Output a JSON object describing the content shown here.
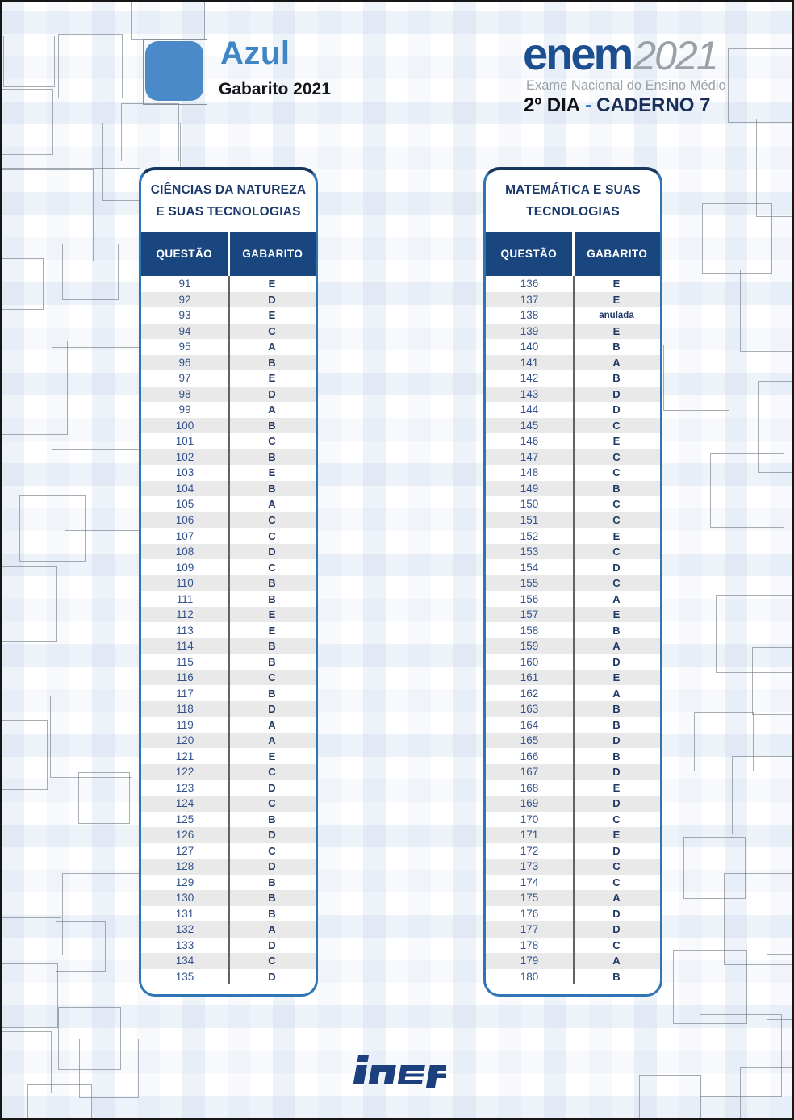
{
  "header": {
    "color_name": "Azul",
    "subtitle": "Gabarito 2021",
    "brand": "enem",
    "brand_year": "2021",
    "brand_tagline": "Exame Nacional do Ensino Médio",
    "day": "2º DIA",
    "separator": "-",
    "caderno": "CADERNO 7"
  },
  "footer": {
    "logo": "inep"
  },
  "colors": {
    "navy_header": "#1a4680",
    "title_navy": "#1b3a6b",
    "table_border_blue": "#2e75b6",
    "azul_chip_blue": "#4a8ac8",
    "azul_text_blue": "#3e86c6",
    "brand_blue": "#1d4f90",
    "row_stripe": "#e9e9e9",
    "answer_navy": "#1f3864"
  },
  "tables": [
    {
      "title_line1": "CIÊNCIAS DA NATUREZA",
      "title_line2": "E SUAS TECNOLOGIAS",
      "col_question": "QUESTÃO",
      "col_answer": "GABARITO",
      "rows": [
        {
          "q": "91",
          "a": "E"
        },
        {
          "q": "92",
          "a": "D"
        },
        {
          "q": "93",
          "a": "E"
        },
        {
          "q": "94",
          "a": "C"
        },
        {
          "q": "95",
          "a": "A"
        },
        {
          "q": "96",
          "a": "B"
        },
        {
          "q": "97",
          "a": "E"
        },
        {
          "q": "98",
          "a": "D"
        },
        {
          "q": "99",
          "a": "A"
        },
        {
          "q": "100",
          "a": "B"
        },
        {
          "q": "101",
          "a": "C"
        },
        {
          "q": "102",
          "a": "B"
        },
        {
          "q": "103",
          "a": "E"
        },
        {
          "q": "104",
          "a": "B"
        },
        {
          "q": "105",
          "a": "A"
        },
        {
          "q": "106",
          "a": "C"
        },
        {
          "q": "107",
          "a": "C"
        },
        {
          "q": "108",
          "a": "D"
        },
        {
          "q": "109",
          "a": "C"
        },
        {
          "q": "110",
          "a": "B"
        },
        {
          "q": "111",
          "a": "B"
        },
        {
          "q": "112",
          "a": "E"
        },
        {
          "q": "113",
          "a": "E"
        },
        {
          "q": "114",
          "a": "B"
        },
        {
          "q": "115",
          "a": "B"
        },
        {
          "q": "116",
          "a": "C"
        },
        {
          "q": "117",
          "a": "B"
        },
        {
          "q": "118",
          "a": "D"
        },
        {
          "q": "119",
          "a": "A"
        },
        {
          "q": "120",
          "a": "A"
        },
        {
          "q": "121",
          "a": "E"
        },
        {
          "q": "122",
          "a": "C"
        },
        {
          "q": "123",
          "a": "D"
        },
        {
          "q": "124",
          "a": "C"
        },
        {
          "q": "125",
          "a": "B"
        },
        {
          "q": "126",
          "a": "D"
        },
        {
          "q": "127",
          "a": "C"
        },
        {
          "q": "128",
          "a": "D"
        },
        {
          "q": "129",
          "a": "B"
        },
        {
          "q": "130",
          "a": "B"
        },
        {
          "q": "131",
          "a": "B"
        },
        {
          "q": "132",
          "a": "A"
        },
        {
          "q": "133",
          "a": "D"
        },
        {
          "q": "134",
          "a": "C"
        },
        {
          "q": "135",
          "a": "D"
        }
      ]
    },
    {
      "title_line1": "MATEMÁTICA E SUAS",
      "title_line2": "TECNOLOGIAS",
      "col_question": "QUESTÃO",
      "col_answer": "GABARITO",
      "rows": [
        {
          "q": "136",
          "a": "E"
        },
        {
          "q": "137",
          "a": "E"
        },
        {
          "q": "138",
          "a": "anulada"
        },
        {
          "q": "139",
          "a": "E"
        },
        {
          "q": "140",
          "a": "B"
        },
        {
          "q": "141",
          "a": "A"
        },
        {
          "q": "142",
          "a": "B"
        },
        {
          "q": "143",
          "a": "D"
        },
        {
          "q": "144",
          "a": "D"
        },
        {
          "q": "145",
          "a": "C"
        },
        {
          "q": "146",
          "a": "E"
        },
        {
          "q": "147",
          "a": "C"
        },
        {
          "q": "148",
          "a": "C"
        },
        {
          "q": "149",
          "a": "B"
        },
        {
          "q": "150",
          "a": "C"
        },
        {
          "q": "151",
          "a": "C"
        },
        {
          "q": "152",
          "a": "E"
        },
        {
          "q": "153",
          "a": "C"
        },
        {
          "q": "154",
          "a": "D"
        },
        {
          "q": "155",
          "a": "C"
        },
        {
          "q": "156",
          "a": "A"
        },
        {
          "q": "157",
          "a": "E"
        },
        {
          "q": "158",
          "a": "B"
        },
        {
          "q": "159",
          "a": "A"
        },
        {
          "q": "160",
          "a": "D"
        },
        {
          "q": "161",
          "a": "E"
        },
        {
          "q": "162",
          "a": "A"
        },
        {
          "q": "163",
          "a": "B"
        },
        {
          "q": "164",
          "a": "B"
        },
        {
          "q": "165",
          "a": "D"
        },
        {
          "q": "166",
          "a": "B"
        },
        {
          "q": "167",
          "a": "D"
        },
        {
          "q": "168",
          "a": "E"
        },
        {
          "q": "169",
          "a": "D"
        },
        {
          "q": "170",
          "a": "C"
        },
        {
          "q": "171",
          "a": "E"
        },
        {
          "q": "172",
          "a": "D"
        },
        {
          "q": "173",
          "a": "C"
        },
        {
          "q": "174",
          "a": "C"
        },
        {
          "q": "175",
          "a": "A"
        },
        {
          "q": "176",
          "a": "D"
        },
        {
          "q": "177",
          "a": "D"
        },
        {
          "q": "178",
          "a": "C"
        },
        {
          "q": "179",
          "a": "A"
        },
        {
          "q": "180",
          "a": "B"
        }
      ]
    }
  ]
}
